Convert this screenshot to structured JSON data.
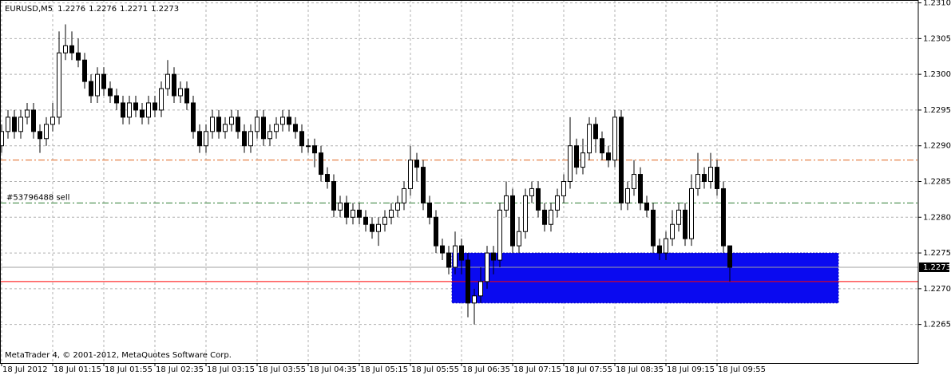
{
  "chart_data": {
    "type": "candlestick",
    "symbol": "EURUSD,M5",
    "footer": "MetaTrader 4, © 2001-2012, MetaQuotes Software Corp.",
    "categories": [
      "18 Jul 2012",
      null,
      null,
      null,
      null,
      null,
      null,
      null,
      "18 Jul 01:15",
      null,
      null,
      null,
      null,
      null,
      null,
      null,
      "18 Jul 01:55",
      null,
      null,
      null,
      null,
      null,
      null,
      null,
      "18 Jul 02:35",
      null,
      null,
      null,
      null,
      null,
      null,
      null,
      "18 Jul 03:15",
      null,
      null,
      null,
      null,
      null,
      null,
      null,
      "18 Jul 03:55",
      null,
      null,
      null,
      null,
      null,
      null,
      null,
      "18 Jul 04:35",
      null,
      null,
      null,
      null,
      null,
      null,
      null,
      "18 Jul 05:15",
      null,
      null,
      null,
      null,
      null,
      null,
      null,
      "18 Jul 05:55",
      null,
      null,
      null,
      null,
      null,
      null,
      null,
      "18 Jul 06:35",
      null,
      null,
      null,
      null,
      null,
      null,
      null,
      "18 Jul 07:15",
      null,
      null,
      null,
      null,
      null,
      null,
      null,
      "18 Jul 07:55",
      null,
      null,
      null,
      null,
      null,
      null,
      null,
      "18 Jul 08:35",
      null,
      null,
      null,
      null,
      null,
      null,
      null,
      "18 Jul 09:15",
      null,
      null,
      null,
      null,
      null,
      null,
      null,
      "18 Jul 09:55",
      null,
      null
    ],
    "open": [
      1.229,
      1.2292,
      1.2294,
      1.2292,
      1.2294,
      1.2295,
      1.2292,
      1.2291,
      1.2293,
      1.2294,
      1.2303,
      1.2304,
      1.2303,
      1.2302,
      1.2299,
      1.2297,
      1.23,
      1.2298,
      1.2297,
      1.2296,
      1.2294,
      1.2296,
      1.2295,
      1.2294,
      1.2296,
      1.2295,
      1.2298,
      1.23,
      1.2297,
      1.2298,
      1.2296,
      1.2292,
      1.229,
      1.2292,
      1.2294,
      1.2292,
      1.2293,
      1.2294,
      1.2292,
      1.229,
      1.2292,
      1.2294,
      1.2291,
      1.2292,
      1.2293,
      1.2294,
      1.2293,
      1.2292,
      1.229,
      1.229,
      1.2289,
      1.2286,
      1.2285,
      1.2281,
      1.2282,
      1.228,
      1.2281,
      1.228,
      1.2279,
      1.2278,
      1.2279,
      1.228,
      1.2281,
      1.2282,
      1.2284,
      1.2288,
      1.2287,
      1.2282,
      1.228,
      1.2276,
      1.2275,
      1.2273,
      1.2276,
      1.2274,
      1.2268,
      1.2269,
      1.2271,
      1.2275,
      1.2274,
      1.2281,
      1.2283,
      1.2276,
      1.2278,
      1.2283,
      1.2284,
      1.2281,
      1.2279,
      1.2281,
      1.2283,
      1.2285,
      1.229,
      1.2287,
      1.2289,
      1.2293,
      1.2291,
      1.2289,
      1.2288,
      1.2294,
      1.2282,
      1.2284,
      1.2286,
      1.2282,
      1.2281,
      1.2276,
      1.2275,
      1.2277,
      1.2279,
      1.2281,
      1.2277,
      1.2284,
      1.2286,
      1.2285,
      1.2287,
      1.2284,
      1.2276
    ],
    "high": [
      1.2293,
      1.2295,
      1.2295,
      1.2295,
      1.2296,
      1.2296,
      1.2293,
      1.2294,
      1.2296,
      1.2306,
      1.2307,
      1.2306,
      1.2305,
      1.2303,
      1.23,
      1.2301,
      1.2301,
      1.2299,
      1.2298,
      1.2297,
      1.2297,
      1.2297,
      1.2296,
      1.2297,
      1.2297,
      1.2299,
      1.2302,
      1.2301,
      1.2299,
      1.2299,
      1.2297,
      1.2293,
      1.2293,
      1.2295,
      1.2295,
      1.2294,
      1.2295,
      1.2295,
      1.2293,
      1.2293,
      1.2295,
      1.2295,
      1.2293,
      1.2294,
      1.2295,
      1.2295,
      1.2294,
      1.2293,
      1.2291,
      1.2291,
      1.229,
      1.2287,
      1.2286,
      1.2283,
      1.2283,
      1.2282,
      1.2282,
      1.2281,
      1.228,
      1.228,
      1.2281,
      1.2282,
      1.2283,
      1.2285,
      1.229,
      1.2289,
      1.2288,
      1.2283,
      1.2281,
      1.2277,
      1.2276,
      1.2278,
      1.2277,
      1.2275,
      1.227,
      1.2273,
      1.2276,
      1.2276,
      1.2282,
      1.2285,
      1.2284,
      1.228,
      1.2284,
      1.2285,
      1.2285,
      1.2282,
      1.2282,
      1.2284,
      1.2286,
      1.2294,
      1.2291,
      1.2291,
      1.2294,
      1.2294,
      1.2292,
      1.229,
      1.2295,
      1.2295,
      1.2285,
      1.2288,
      1.2287,
      1.2283,
      1.2282,
      1.2277,
      1.2278,
      1.2281,
      1.2282,
      1.2282,
      1.2286,
      1.2289,
      1.2287,
      1.2289,
      1.2288,
      1.2285,
      1.2276
    ],
    "low": [
      1.2289,
      1.2291,
      1.2291,
      1.2291,
      1.2293,
      1.2291,
      1.2289,
      1.229,
      1.2292,
      1.2293,
      1.2302,
      1.2302,
      1.2301,
      1.2298,
      1.2296,
      1.2296,
      1.2297,
      1.2296,
      1.2295,
      1.2293,
      1.2293,
      1.2294,
      1.2293,
      1.2293,
      1.2294,
      1.2294,
      1.2297,
      1.2296,
      1.2296,
      1.2295,
      1.2291,
      1.2289,
      1.2289,
      1.2291,
      1.2291,
      1.2291,
      1.2292,
      1.2291,
      1.2289,
      1.2289,
      1.2291,
      1.229,
      1.229,
      1.2291,
      1.2292,
      1.2292,
      1.2291,
      1.2289,
      1.2289,
      1.2287,
      1.2285,
      1.2284,
      1.228,
      1.228,
      1.2279,
      1.2279,
      1.2279,
      1.2278,
      1.2277,
      1.2276,
      1.2278,
      1.2279,
      1.228,
      1.2281,
      1.2283,
      1.2285,
      1.2281,
      1.2279,
      1.2275,
      1.2274,
      1.2272,
      1.2272,
      1.2272,
      1.2266,
      1.2265,
      1.2268,
      1.227,
      1.2272,
      1.2273,
      1.228,
      1.2275,
      1.2275,
      1.2277,
      1.2282,
      1.228,
      1.2278,
      1.2278,
      1.228,
      1.2282,
      1.2284,
      1.2286,
      1.2286,
      1.2288,
      1.2289,
      1.2288,
      1.2287,
      1.2287,
      1.2281,
      1.2281,
      1.2283,
      1.2281,
      1.228,
      1.2275,
      1.2274,
      1.2274,
      1.2276,
      1.2278,
      1.2276,
      1.2276,
      1.2283,
      1.2284,
      1.2284,
      1.2283,
      1.2275,
      1.2271
    ],
    "close": [
      1.2292,
      1.2294,
      1.2292,
      1.2294,
      1.2295,
      1.2292,
      1.2291,
      1.2293,
      1.2294,
      1.2303,
      1.2304,
      1.2303,
      1.2302,
      1.2299,
      1.2297,
      1.23,
      1.2298,
      1.2297,
      1.2296,
      1.2294,
      1.2296,
      1.2295,
      1.2294,
      1.2296,
      1.2295,
      1.2298,
      1.23,
      1.2297,
      1.2298,
      1.2296,
      1.2292,
      1.229,
      1.2292,
      1.2294,
      1.2292,
      1.2293,
      1.2294,
      1.2292,
      1.229,
      1.2292,
      1.2294,
      1.2291,
      1.2292,
      1.2293,
      1.2294,
      1.2293,
      1.2292,
      1.229,
      1.229,
      1.2289,
      1.2286,
      1.2285,
      1.2281,
      1.2282,
      1.228,
      1.2281,
      1.228,
      1.2279,
      1.2278,
      1.2279,
      1.228,
      1.2281,
      1.2282,
      1.2284,
      1.2288,
      1.2287,
      1.2282,
      1.228,
      1.2276,
      1.2275,
      1.2273,
      1.2276,
      1.2274,
      1.2268,
      1.2269,
      1.2271,
      1.2275,
      1.2274,
      1.2281,
      1.2283,
      1.2276,
      1.2278,
      1.2283,
      1.2284,
      1.2281,
      1.2279,
      1.2281,
      1.2283,
      1.2285,
      1.229,
      1.2287,
      1.2289,
      1.2293,
      1.2291,
      1.2289,
      1.2288,
      1.2294,
      1.2282,
      1.2284,
      1.2286,
      1.2282,
      1.2281,
      1.2276,
      1.2275,
      1.2277,
      1.2279,
      1.2281,
      1.2277,
      1.2284,
      1.2286,
      1.2285,
      1.2287,
      1.2284,
      1.2276,
      1.2273
    ],
    "ylim": [
      1.22596,
      1.23104
    ],
    "yticks": [
      {
        "value": 1.231,
        "label": "1.2310"
      },
      1.2305,
      {
        "value": 1.23,
        "label": "1.2300"
      },
      1.2295,
      {
        "value": 1.229,
        "label": "1.2290"
      },
      1.2285,
      {
        "value": 1.228,
        "label": "1.2280"
      },
      1.2275,
      {
        "value": 1.227,
        "label": "1.2270"
      },
      1.2265
    ],
    "grid": true,
    "up_color": "#ffffff",
    "down_color": "#000000",
    "levels": [
      {
        "value": 1.2288,
        "color": "#e0641e",
        "style": "dashdot"
      },
      {
        "name": "#53796488 sell",
        "value": 1.2282,
        "color": "#2e7d32",
        "style": "dashdot"
      },
      {
        "value": 1.2271,
        "color": "#ff0000",
        "style": "solid"
      }
    ],
    "rectangle": {
      "top": 1.2275,
      "bottom": 1.2268,
      "color": "#0a0af0"
    }
  }
}
